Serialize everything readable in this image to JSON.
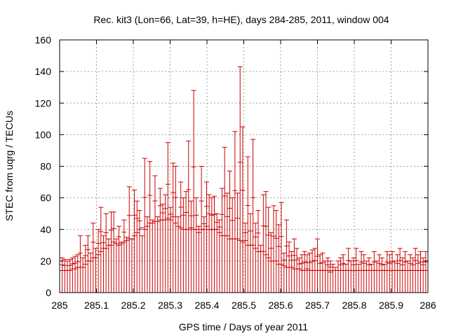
{
  "chart_data": {
    "type": "scatter",
    "style": "vertical impulses with horizontal tick markers",
    "title": "Rec. kit3 (Lon=66, Lat=39, h=HE), days 284-285, 2011, window 004",
    "xlabel": "GPS time / Days of year 2011",
    "ylabel": "STEC from uqrg / TECUs",
    "xlim": [
      285,
      286
    ],
    "ylim": [
      0,
      160
    ],
    "xticks": [
      285,
      285.1,
      285.2,
      285.3,
      285.4,
      285.5,
      285.6,
      285.7,
      285.8,
      285.9,
      286
    ],
    "xtick_labels": [
      "285",
      "285.1",
      "285.2",
      "285.3",
      "285.4",
      "285.5",
      "285.6",
      "285.7",
      "285.8",
      "285.9",
      "286"
    ],
    "yticks": [
      0,
      20,
      40,
      60,
      80,
      100,
      120,
      140,
      160
    ],
    "ytick_labels": [
      "0",
      "20",
      "40",
      "60",
      "80",
      "100",
      "120",
      "140",
      "160"
    ],
    "grid": true,
    "color": "#cc0000",
    "series": [
      {
        "name": "STEC",
        "x": [
          285.007,
          285.014,
          285.021,
          285.028,
          285.035,
          285.042,
          285.049,
          285.056,
          285.063,
          285.07,
          285.077,
          285.084,
          285.091,
          285.098,
          285.105,
          285.112,
          285.119,
          285.126,
          285.133,
          285.14,
          285.147,
          285.154,
          285.161,
          285.168,
          285.175,
          285.182,
          285.189,
          285.196,
          285.203,
          285.21,
          285.217,
          285.224,
          285.231,
          285.238,
          285.245,
          285.252,
          285.259,
          285.266,
          285.273,
          285.28,
          285.287,
          285.294,
          285.301,
          285.308,
          285.315,
          285.322,
          285.329,
          285.336,
          285.343,
          285.35,
          285.357,
          285.364,
          285.371,
          285.378,
          285.385,
          285.392,
          285.399,
          285.406,
          285.413,
          285.42,
          285.427,
          285.434,
          285.441,
          285.448,
          285.455,
          285.462,
          285.469,
          285.476,
          285.483,
          285.49,
          285.497,
          285.504,
          285.511,
          285.518,
          285.525,
          285.532,
          285.539,
          285.546,
          285.553,
          285.56,
          285.567,
          285.574,
          285.581,
          285.588,
          285.595,
          285.602,
          285.609,
          285.616,
          285.623,
          285.63,
          285.637,
          285.644,
          285.651,
          285.658,
          285.665,
          285.672,
          285.679,
          285.686,
          285.693,
          285.7,
          285.707,
          285.714,
          285.721,
          285.728,
          285.735,
          285.742,
          285.749,
          285.756,
          285.763,
          285.77,
          285.777,
          285.784,
          285.791,
          285.798,
          285.805,
          285.812,
          285.819,
          285.826,
          285.833,
          285.84,
          285.847,
          285.854,
          285.861,
          285.868,
          285.875,
          285.882,
          285.889,
          285.896,
          285.903,
          285.91,
          285.917,
          285.924,
          285.931,
          285.938,
          285.945,
          285.952,
          285.959,
          285.966,
          285.973,
          285.98,
          285.987,
          285.994
        ],
        "values": [
          22,
          21,
          20,
          21,
          22,
          23,
          24,
          36,
          22,
          30,
          36,
          25,
          44,
          28,
          40,
          54,
          36,
          50,
          34,
          51,
          51,
          34,
          42,
          32,
          46,
          35,
          67,
          34,
          65,
          58,
          52,
          36,
          85,
          48,
          83,
          46,
          74,
          48,
          66,
          56,
          62,
          95,
          54,
          82,
          80,
          48,
          70,
          60,
          64,
          96,
          58,
          128,
          60,
          42,
          80,
          48,
          70,
          62,
          60,
          61,
          50,
          46,
          66,
          92,
          63,
          77,
          60,
          102,
          63,
          143,
          105,
          44,
          86,
          50,
          97,
          44,
          52,
          30,
          62,
          64,
          54,
          38,
          55,
          52,
          43,
          57,
          25,
          46,
          32,
          26,
          34,
          28,
          22,
          24,
          26,
          24,
          25,
          27,
          28,
          34,
          24,
          25,
          20,
          22,
          20,
          18,
          16,
          20,
          22,
          24,
          18,
          28,
          20,
          22,
          28,
          18,
          26,
          24,
          20,
          22,
          18,
          26,
          20,
          24,
          22,
          18,
          26,
          24,
          26,
          20,
          24,
          28,
          22,
          26,
          20,
          24,
          22,
          28,
          24,
          26,
          22,
          26
        ],
        "lower": [
          14,
          14,
          14,
          14,
          15,
          15,
          16,
          16,
          16,
          18,
          20,
          20,
          22,
          22,
          24,
          26,
          28,
          28,
          30,
          30,
          32,
          31,
          30,
          31,
          32,
          33,
          34,
          34,
          36,
          38,
          40,
          41,
          40,
          42,
          44,
          44,
          45,
          45,
          46,
          46,
          46,
          47,
          46,
          48,
          44,
          42,
          41,
          40,
          40,
          40,
          41,
          40,
          40,
          38,
          40,
          40,
          42,
          40,
          40,
          40,
          40,
          38,
          36,
          36,
          36,
          34,
          34,
          34,
          34,
          33,
          32,
          33,
          30,
          30,
          30,
          28,
          26,
          26,
          26,
          24,
          22,
          20,
          20,
          20,
          18,
          18,
          17,
          16,
          16,
          16,
          15,
          15,
          15,
          14,
          14,
          15,
          14,
          14,
          14,
          14,
          14,
          14,
          14,
          14,
          13,
          14,
          14,
          14,
          14,
          14,
          14,
          14,
          14,
          14,
          14,
          14,
          14,
          14,
          14,
          14,
          14,
          14,
          14,
          14,
          14,
          14,
          14,
          14,
          14,
          14,
          14,
          14,
          14,
          14,
          14,
          14,
          14,
          14,
          14,
          14,
          14,
          14
        ]
      }
    ]
  }
}
